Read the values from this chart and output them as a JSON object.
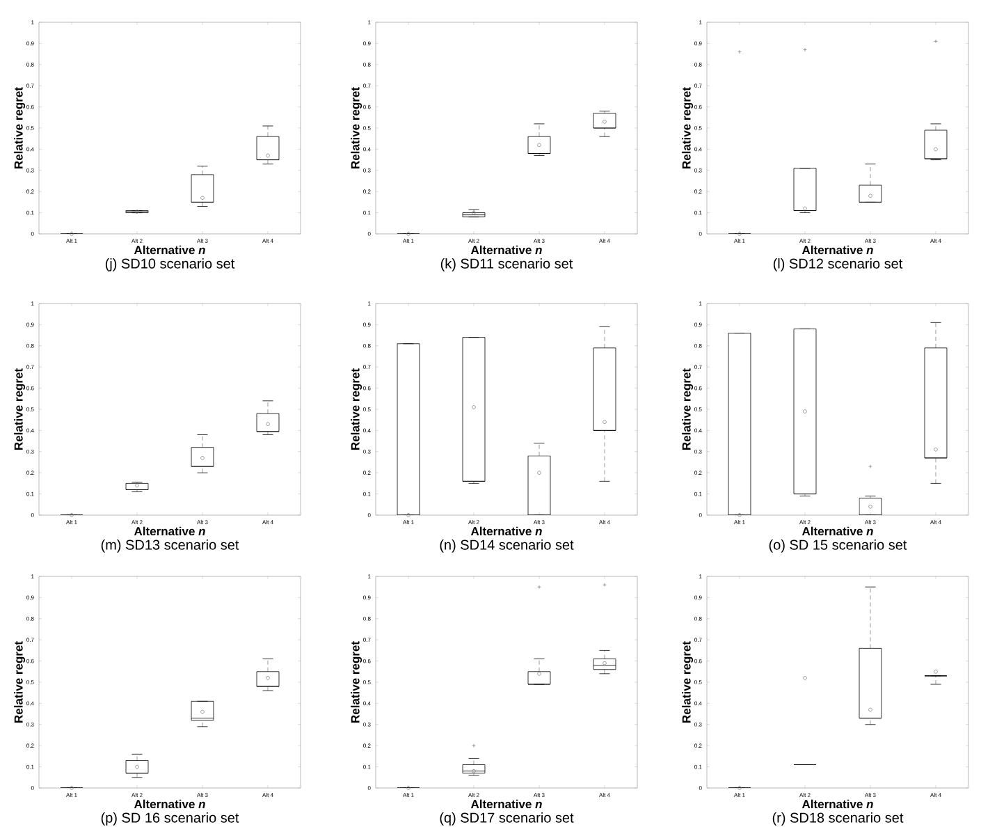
{
  "chart_data": [
    {
      "type": "box",
      "title": "(j) SD10 scenario set",
      "xlabel": "Alternative *n*",
      "ylabel": "Relative regret",
      "categories": [
        "Alt 1",
        "Alt 2",
        "Alt 3",
        "Alt 4"
      ],
      "ylim": [
        0,
        1
      ],
      "yticks": [
        0,
        0.1,
        0.2,
        0.3,
        0.4,
        0.5,
        0.6,
        0.7,
        0.8,
        0.9,
        1
      ],
      "boxes": [
        {
          "low": 0,
          "q1": 0,
          "median": 0,
          "q3": 0,
          "high": 0,
          "mean": 0
        },
        {
          "low": 0.1,
          "q1": 0.1,
          "median": 0.105,
          "q3": 0.11,
          "high": 0.11,
          "mean": 0.105
        },
        {
          "low": 0.13,
          "q1": 0.15,
          "median": 0.15,
          "q3": 0.28,
          "high": 0.32,
          "mean": 0.17
        },
        {
          "low": 0.33,
          "q1": 0.35,
          "median": 0.35,
          "q3": 0.46,
          "high": 0.51,
          "mean": 0.37
        }
      ]
    },
    {
      "type": "box",
      "title": "(k) SD11 scenario set",
      "xlabel": "Alternative *n*",
      "ylabel": "Relative regret",
      "categories": [
        "Alt 1",
        "Alt 2",
        "Alt 3",
        "Alt 4"
      ],
      "ylim": [
        0,
        1
      ],
      "yticks": [
        0,
        0.1,
        0.2,
        0.3,
        0.4,
        0.5,
        0.6,
        0.7,
        0.8,
        0.9,
        1
      ],
      "boxes": [
        {
          "low": 0,
          "q1": 0,
          "median": 0,
          "q3": 0,
          "high": 0,
          "mean": 0
        },
        {
          "low": 0.08,
          "q1": 0.08,
          "median": 0.09,
          "q3": 0.1,
          "high": 0.115,
          "mean": 0.1
        },
        {
          "low": 0.37,
          "q1": 0.38,
          "median": 0.38,
          "q3": 0.46,
          "high": 0.52,
          "mean": 0.42
        },
        {
          "low": 0.46,
          "q1": 0.5,
          "median": 0.5,
          "q3": 0.57,
          "high": 0.58,
          "mean": 0.53
        }
      ]
    },
    {
      "type": "box",
      "title": "(l) SD12 scenario set",
      "xlabel": "Alternative *n*",
      "ylabel": "Relative regret",
      "categories": [
        "Alt 1",
        "Alt 2",
        "Alt 3",
        "Alt 4"
      ],
      "ylim": [
        0,
        1
      ],
      "yticks": [
        0,
        0.1,
        0.2,
        0.3,
        0.4,
        0.5,
        0.6,
        0.7,
        0.8,
        0.9,
        1
      ],
      "boxes": [
        {
          "low": 0,
          "q1": 0,
          "median": 0,
          "q3": 0,
          "high": 0,
          "mean": 0,
          "outliers": [
            0.86
          ]
        },
        {
          "low": 0.1,
          "q1": 0.11,
          "median": 0.11,
          "q3": 0.31,
          "high": 0.31,
          "mean": 0.12,
          "outliers": [
            0.87
          ]
        },
        {
          "low": 0.15,
          "q1": 0.15,
          "median": 0.15,
          "q3": 0.23,
          "high": 0.33,
          "mean": 0.18
        },
        {
          "low": 0.35,
          "q1": 0.355,
          "median": 0.355,
          "q3": 0.49,
          "high": 0.52,
          "mean": 0.4,
          "outliers": [
            0.91
          ]
        }
      ]
    },
    {
      "type": "box",
      "title": "(m) SD13 scenario set",
      "xlabel": "Alternative *n*",
      "ylabel": "Relative regret",
      "categories": [
        "Alt 1",
        "Alt 2",
        "Alt 3",
        "Alt 4"
      ],
      "ylim": [
        0,
        1
      ],
      "yticks": [
        0,
        0.1,
        0.2,
        0.3,
        0.4,
        0.5,
        0.6,
        0.7,
        0.8,
        0.9,
        1
      ],
      "boxes": [
        {
          "low": 0,
          "q1": 0,
          "median": 0,
          "q3": 0,
          "high": 0,
          "mean": 0
        },
        {
          "low": 0.11,
          "q1": 0.12,
          "median": 0.12,
          "q3": 0.15,
          "high": 0.155,
          "mean": 0.14
        },
        {
          "low": 0.2,
          "q1": 0.23,
          "median": 0.23,
          "q3": 0.32,
          "high": 0.38,
          "mean": 0.27
        },
        {
          "low": 0.38,
          "q1": 0.395,
          "median": 0.395,
          "q3": 0.48,
          "high": 0.54,
          "mean": 0.43
        }
      ]
    },
    {
      "type": "box",
      "title": "(n) SD14 scenario set",
      "xlabel": "Alternative *n*",
      "ylabel": "Relative regret",
      "categories": [
        "Alt 1",
        "Alt 2",
        "Alt 3",
        "Alt 4"
      ],
      "ylim": [
        0,
        1
      ],
      "yticks": [
        0,
        0.1,
        0.2,
        0.3,
        0.4,
        0.5,
        0.6,
        0.7,
        0.8,
        0.9,
        1
      ],
      "boxes": [
        {
          "low": 0,
          "q1": 0,
          "median": 0,
          "q3": 0.81,
          "high": 0.81,
          "mean": 0
        },
        {
          "low": 0.15,
          "q1": 0.16,
          "median": 0.16,
          "q3": 0.84,
          "high": 0.84,
          "mean": 0.51
        },
        {
          "low": 0,
          "q1": 0,
          "median": 0,
          "q3": 0.28,
          "high": 0.34,
          "mean": 0.2
        },
        {
          "low": 0.16,
          "q1": 0.4,
          "median": 0.4,
          "q3": 0.79,
          "high": 0.89,
          "mean": 0.44
        }
      ]
    },
    {
      "type": "box",
      "title": "(o) SD 15 scenario set",
      "xlabel": "Alternative *n*",
      "ylabel": "Relative regret",
      "categories": [
        "Alt 1",
        "Alt 2",
        "Alt 3",
        "Alt 4"
      ],
      "ylim": [
        0,
        1
      ],
      "yticks": [
        0,
        0.1,
        0.2,
        0.3,
        0.4,
        0.5,
        0.6,
        0.7,
        0.8,
        0.9,
        1
      ],
      "boxes": [
        {
          "low": 0,
          "q1": 0,
          "median": 0,
          "q3": 0.86,
          "high": 0.86,
          "mean": 0
        },
        {
          "low": 0.09,
          "q1": 0.1,
          "median": 0.1,
          "q3": 0.88,
          "high": 0.88,
          "mean": 0.49
        },
        {
          "low": 0,
          "q1": 0,
          "median": 0,
          "q3": 0.08,
          "high": 0.09,
          "mean": 0.04,
          "outliers": [
            0.23
          ]
        },
        {
          "low": 0.15,
          "q1": 0.27,
          "median": 0.27,
          "q3": 0.79,
          "high": 0.91,
          "mean": 0.31
        }
      ]
    },
    {
      "type": "box",
      "title": "(p) SD 16 scenario set",
      "xlabel": "Alternative *n*",
      "ylabel": "Relative regret",
      "categories": [
        "Alt 1",
        "Alt 2",
        "Alt 3",
        "Alt 4"
      ],
      "ylim": [
        0,
        1
      ],
      "yticks": [
        0,
        0.1,
        0.2,
        0.3,
        0.4,
        0.5,
        0.6,
        0.7,
        0.8,
        0.9,
        1
      ],
      "boxes": [
        {
          "low": 0,
          "q1": 0,
          "median": 0,
          "q3": 0,
          "high": 0,
          "mean": 0
        },
        {
          "low": 0.05,
          "q1": 0.07,
          "median": 0.07,
          "q3": 0.13,
          "high": 0.16,
          "mean": 0.1
        },
        {
          "low": 0.29,
          "q1": 0.32,
          "median": 0.33,
          "q3": 0.41,
          "high": 0.41,
          "mean": 0.36
        },
        {
          "low": 0.46,
          "q1": 0.48,
          "median": 0.48,
          "q3": 0.55,
          "high": 0.61,
          "mean": 0.52
        }
      ]
    },
    {
      "type": "box",
      "title": "(q) SD17 scenario set",
      "xlabel": "Alternative *n*",
      "ylabel": "Relative regret",
      "categories": [
        "Alt 1",
        "Alt 2",
        "Alt 3",
        "Alt 4"
      ],
      "ylim": [
        0,
        1
      ],
      "yticks": [
        0,
        0.1,
        0.2,
        0.3,
        0.4,
        0.5,
        0.6,
        0.7,
        0.8,
        0.9,
        1
      ],
      "boxes": [
        {
          "low": 0,
          "q1": 0,
          "median": 0,
          "q3": 0,
          "high": 0,
          "mean": 0
        },
        {
          "low": 0.06,
          "q1": 0.07,
          "median": 0.08,
          "q3": 0.11,
          "high": 0.14,
          "mean": 0.08,
          "outliers": [
            0.2
          ]
        },
        {
          "low": 0.49,
          "q1": 0.49,
          "median": 0.49,
          "q3": 0.55,
          "high": 0.61,
          "mean": 0.54,
          "outliers": [
            0.95
          ]
        },
        {
          "low": 0.54,
          "q1": 0.56,
          "median": 0.58,
          "q3": 0.61,
          "high": 0.65,
          "mean": 0.59,
          "outliers": [
            0.96
          ]
        }
      ]
    },
    {
      "type": "box",
      "title": "(r) SD18 scenario set",
      "xlabel": "Alternative *n*",
      "ylabel": "Relative regret",
      "categories": [
        "Alt 1",
        "Alt 2",
        "Alt 3",
        "Alt 4"
      ],
      "ylim": [
        0,
        1
      ],
      "yticks": [
        0,
        0.1,
        0.2,
        0.3,
        0.4,
        0.5,
        0.6,
        0.7,
        0.8,
        0.9,
        1
      ],
      "boxes": [
        {
          "low": 0,
          "q1": 0,
          "median": 0,
          "q3": 0,
          "high": 0,
          "mean": 0
        },
        {
          "low": 0.11,
          "q1": 0.11,
          "median": 0.11,
          "q3": 0.11,
          "high": 0.11,
          "mean": 0.52
        },
        {
          "low": 0.3,
          "q1": 0.33,
          "median": 0.33,
          "q3": 0.66,
          "high": 0.95,
          "mean": 0.37
        },
        {
          "low": 0.49,
          "q1": 0.53,
          "median": 0.53,
          "q3": 0.53,
          "high": 0.53,
          "mean": 0.55
        }
      ]
    }
  ]
}
